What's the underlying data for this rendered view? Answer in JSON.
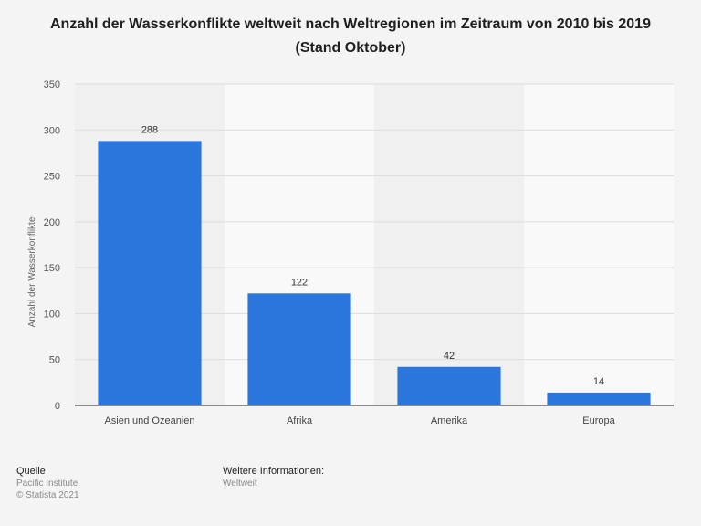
{
  "chart_data": {
    "type": "bar",
    "title": "Anzahl der Wasserkonflikte weltweit nach Weltregionen im Zeitraum von 2010 bis 2019 (Stand Oktober)",
    "xlabel": "",
    "ylabel": "Anzahl der Wasserkonflikte",
    "categories": [
      "Asien und Ozeanien",
      "Afrika",
      "Amerika",
      "Europa"
    ],
    "values": [
      288,
      122,
      42,
      14
    ],
    "data_labels": [
      "288",
      "122",
      "42",
      "14"
    ],
    "ylim": [
      0,
      350
    ],
    "yticks": [
      0,
      50,
      100,
      150,
      200,
      250,
      300,
      350
    ],
    "grid": true,
    "legend": "none",
    "bar_color": "#2a76dd"
  },
  "footer": {
    "source_heading": "Quelle",
    "source_lines": [
      "Pacific Institute",
      "© Statista 2021"
    ],
    "info_heading": "Weitere Informationen:",
    "info_lines": [
      "Weltweit"
    ]
  }
}
